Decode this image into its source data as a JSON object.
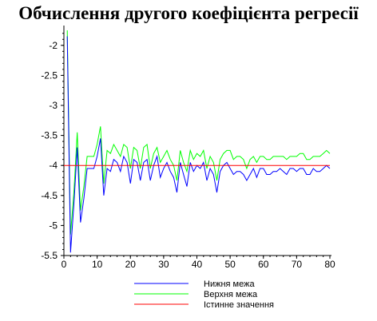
{
  "chart_data": {
    "type": "line",
    "title": "Обчислення другого коефіцієнта регресії",
    "xlabel": "",
    "ylabel": "",
    "xlim": [
      0,
      80
    ],
    "ylim": [
      -5.5,
      -1.75
    ],
    "x_ticks": [
      0,
      10,
      20,
      30,
      40,
      50,
      60,
      70,
      80
    ],
    "y_ticks": [
      -2,
      -2.5,
      -3,
      -3.5,
      -4,
      -4.5,
      -5,
      -5.5
    ],
    "legend_position": "bottom-center",
    "series": [
      {
        "name": "Нижня межа",
        "color": "#0000ff",
        "x": [
          1,
          2,
          3,
          4,
          5,
          6,
          7,
          8,
          9,
          10,
          11,
          12,
          13,
          14,
          15,
          16,
          17,
          18,
          19,
          20,
          21,
          22,
          23,
          24,
          25,
          26,
          27,
          28,
          29,
          30,
          31,
          32,
          33,
          34,
          35,
          36,
          37,
          38,
          39,
          40,
          41,
          42,
          43,
          44,
          45,
          46,
          47,
          48,
          49,
          50,
          51,
          52,
          53,
          54,
          55,
          56,
          57,
          58,
          59,
          60,
          61,
          62,
          63,
          64,
          65,
          66,
          67,
          68,
          69,
          70,
          71,
          72,
          73,
          74,
          75,
          76,
          77,
          78,
          79,
          80
        ],
        "values": [
          -1.85,
          -5.45,
          -4.65,
          -3.7,
          -4.95,
          -4.55,
          -4.05,
          -4.05,
          -4.05,
          -3.85,
          -3.55,
          -4.5,
          -4.05,
          -4.1,
          -3.9,
          -3.95,
          -4.1,
          -3.85,
          -3.95,
          -4.3,
          -3.9,
          -3.95,
          -4.25,
          -3.95,
          -3.9,
          -4.25,
          -4.0,
          -3.85,
          -4.2,
          -4.05,
          -3.95,
          -4.1,
          -4.2,
          -4.45,
          -3.95,
          -4.15,
          -4.35,
          -3.95,
          -4.1,
          -4.0,
          -4.05,
          -3.95,
          -4.25,
          -4.05,
          -4.15,
          -4.45,
          -4.1,
          -4.0,
          -3.95,
          -4.05,
          -4.15,
          -4.1,
          -4.1,
          -4.15,
          -4.25,
          -4.15,
          -4.05,
          -4.2,
          -4.05,
          -4.05,
          -4.15,
          -4.15,
          -4.1,
          -4.1,
          -4.05,
          -4.1,
          -4.15,
          -4.05,
          -4.05,
          -4.1,
          -4.05,
          -4.05,
          -4.15,
          -4.15,
          -4.05,
          -4.1,
          -4.1,
          -4.05,
          -4.0,
          -4.05
        ]
      },
      {
        "name": "Верхня межа",
        "color": "#00ff00",
        "x": [
          1,
          2,
          3,
          4,
          5,
          6,
          7,
          8,
          9,
          10,
          11,
          12,
          13,
          14,
          15,
          16,
          17,
          18,
          19,
          20,
          21,
          22,
          23,
          24,
          25,
          26,
          27,
          28,
          29,
          30,
          31,
          32,
          33,
          34,
          35,
          36,
          37,
          38,
          39,
          40,
          41,
          42,
          43,
          44,
          45,
          46,
          47,
          48,
          49,
          50,
          51,
          52,
          53,
          54,
          55,
          56,
          57,
          58,
          59,
          60,
          61,
          62,
          63,
          64,
          65,
          66,
          67,
          68,
          69,
          70,
          71,
          72,
          73,
          74,
          75,
          76,
          77,
          78,
          79,
          80
        ],
        "values": [
          -1.75,
          -5.15,
          -4.45,
          -3.45,
          -4.75,
          -4.35,
          -3.85,
          -3.85,
          -3.85,
          -3.65,
          -3.35,
          -4.3,
          -3.75,
          -3.8,
          -3.65,
          -3.75,
          -3.85,
          -3.65,
          -3.7,
          -4.05,
          -3.7,
          -3.75,
          -4.05,
          -3.7,
          -3.65,
          -4.05,
          -3.8,
          -3.7,
          -3.95,
          -3.85,
          -3.75,
          -3.9,
          -4.0,
          -4.25,
          -3.75,
          -3.95,
          -4.1,
          -3.75,
          -3.9,
          -3.8,
          -3.85,
          -3.75,
          -4.05,
          -3.85,
          -3.95,
          -4.25,
          -3.9,
          -3.8,
          -3.75,
          -3.75,
          -3.9,
          -3.85,
          -3.85,
          -3.9,
          -4.05,
          -3.9,
          -3.85,
          -3.95,
          -3.85,
          -3.85,
          -3.9,
          -3.9,
          -3.85,
          -3.85,
          -3.85,
          -3.85,
          -3.9,
          -3.85,
          -3.85,
          -3.85,
          -3.8,
          -3.8,
          -3.9,
          -3.9,
          -3.85,
          -3.85,
          -3.85,
          -3.8,
          -3.75,
          -3.8
        ]
      },
      {
        "name": "Істинне значення",
        "color": "#ff0000",
        "x": [
          0,
          80
        ],
        "values": [
          -4,
          -4
        ]
      }
    ]
  }
}
